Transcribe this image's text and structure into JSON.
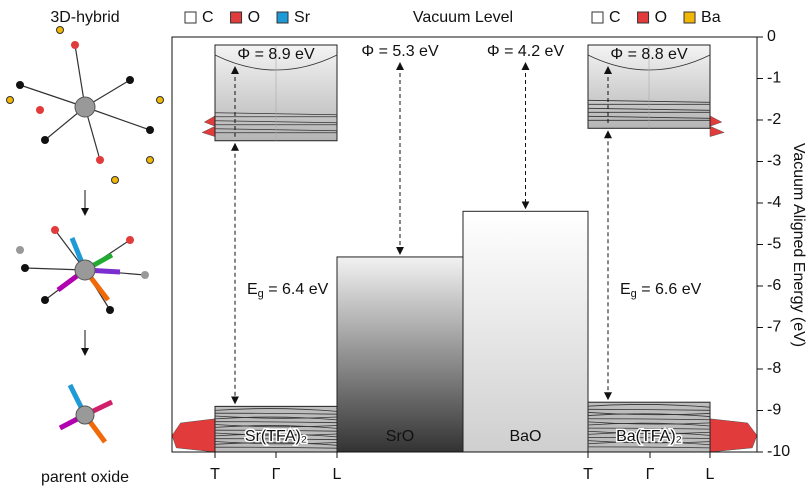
{
  "chart_data": {
    "type": "band-alignment",
    "title": "Vacuum Level",
    "y_label": "Vacuum Aligned Energy (eV)",
    "ylim": [
      -10,
      0
    ],
    "yticks": [
      0,
      -1,
      -2,
      -3,
      -4,
      -5,
      -6,
      -7,
      -8,
      -9,
      -10
    ],
    "categories": [
      "Sr(TFA)₂",
      "SrO",
      "BaO",
      "Ba(TFA)₂"
    ],
    "values": [
      -8.9,
      -5.3,
      -4.2,
      -8.8
    ],
    "value_labels": [
      "Φ = 8.9 eV",
      "Φ = 5.3 eV",
      "Φ = 4.2 eV",
      "Φ = 8.8 eV"
    ],
    "band_gaps": [
      {
        "cbm": -2.5,
        "gap": 6.4,
        "label": "Eg = 6.4 eV"
      },
      {
        "cbm": -2.2,
        "gap": 6.6,
        "label": "Eg = 6.6 eV"
      }
    ],
    "k_labels": [
      "T",
      "Γ",
      "L",
      "T",
      "Γ",
      "L"
    ],
    "legends": [
      {
        "items": [
          {
            "name": "C",
            "color": "#ffffff"
          },
          {
            "name": "O",
            "color": "#e23b3b"
          },
          {
            "name": "Sr",
            "color": "#1e9ad6"
          }
        ]
      },
      {
        "items": [
          {
            "name": "C",
            "color": "#ffffff"
          },
          {
            "name": "O",
            "color": "#e23b3b"
          },
          {
            "name": "Ba",
            "color": "#f2b705"
          }
        ]
      }
    ],
    "side_labels": {
      "top": "3D-hybrid",
      "bottom": "parent oxide"
    }
  }
}
